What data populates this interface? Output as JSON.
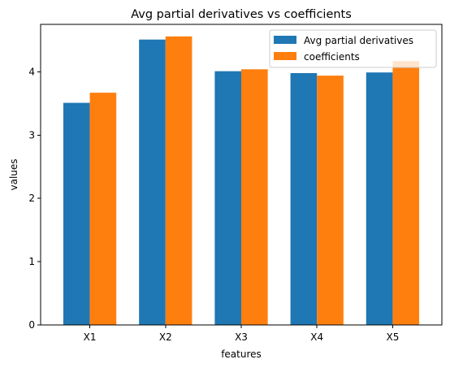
{
  "chart_data": {
    "type": "bar",
    "title": "Avg partial derivatives vs coefficients",
    "xlabel": "features",
    "ylabel": "values",
    "categories": [
      "X1",
      "X2",
      "X3",
      "X4",
      "X5"
    ],
    "series": [
      {
        "name": "Avg partial derivatives",
        "color": "#1f77b4",
        "values": [
          3.51,
          4.51,
          4.01,
          3.98,
          3.99
        ]
      },
      {
        "name": "coefficients",
        "color": "#ff7f0e",
        "values": [
          3.67,
          4.56,
          4.04,
          3.94,
          4.17
        ]
      }
    ],
    "ylim": [
      0,
      4.75
    ],
    "yticks": [
      "0",
      "1",
      "2",
      "3",
      "4"
    ],
    "grid": false,
    "legend_position": "top-right"
  }
}
